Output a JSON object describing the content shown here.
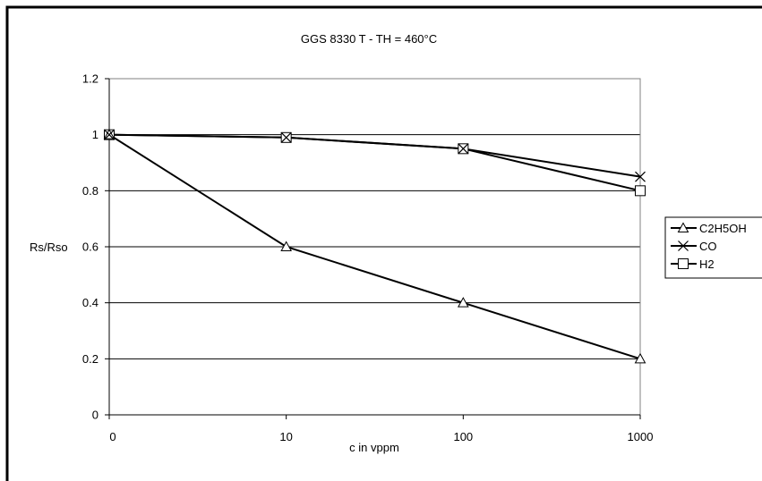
{
  "chart_data": {
    "type": "line",
    "title": "GGS 8330 T - TH = 460°C",
    "xlabel": "c in vppm",
    "ylabel": "Rs/Rso",
    "categories": [
      "0",
      "10",
      "100",
      "1000"
    ],
    "ylim": [
      0,
      1.2
    ],
    "yticks": [
      "0",
      "0.2",
      "0.4",
      "0.6",
      "0.8",
      "1",
      "1.2"
    ],
    "grid": "horizontal",
    "legend_position": "right",
    "series": [
      {
        "name": "C2H5OH",
        "marker": "triangle",
        "color": "#000000",
        "values": [
          1.0,
          0.6,
          0.4,
          0.2
        ]
      },
      {
        "name": "CO",
        "marker": "x",
        "color": "#000000",
        "values": [
          1.0,
          0.99,
          0.95,
          0.85
        ]
      },
      {
        "name": "H2",
        "marker": "square",
        "color": "#000000",
        "values": [
          1.0,
          0.99,
          0.95,
          0.8
        ]
      }
    ]
  }
}
